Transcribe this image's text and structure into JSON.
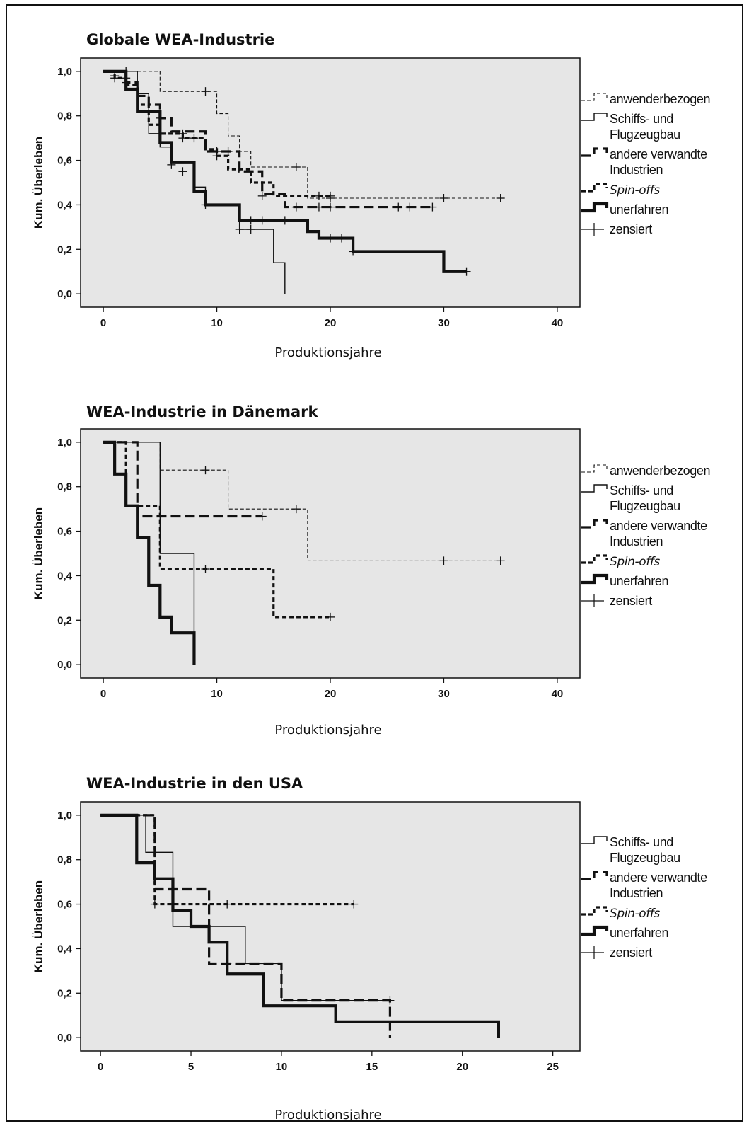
{
  "styles": {
    "anwenderbezogen": {
      "width": 1.1,
      "dash": "5 3"
    },
    "schiffsbau": {
      "width": 1.4,
      "dash": ""
    },
    "andere": {
      "width": 3.2,
      "dash": "14 6"
    },
    "spinoffs": {
      "width": 3.2,
      "dash": "6 4"
    },
    "unerfahren": {
      "width": 4.2,
      "dash": ""
    }
  },
  "chart_data": [
    {
      "type": "line",
      "title": "Globale WEA-Industrie",
      "xlabel": "Produktionsjahre",
      "ylabel": "Kum. Überleben",
      "xlim": [
        -2,
        42
      ],
      "ylim": [
        -0.06,
        1.06
      ],
      "xticks": [
        0,
        10,
        20,
        30,
        40
      ],
      "xtick_labels": [
        "0",
        "10",
        "20",
        "30",
        "40"
      ],
      "yticks": [
        0,
        0.2,
        0.4,
        0.6,
        0.8,
        1.0
      ],
      "ytick_labels": [
        "0,0",
        "0,2",
        "0,4",
        "0,6",
        "0,8",
        "1,0"
      ],
      "legend": [
        {
          "key": "anwenderbezogen",
          "lines": [
            "anwenderbezogen"
          ],
          "italic": false
        },
        {
          "key": "schiffsbau",
          "lines": [
            "Schiffs- und",
            "Flugzeugbau"
          ],
          "italic": false
        },
        {
          "key": "andere",
          "lines": [
            "andere verwandte",
            "Industrien"
          ],
          "italic": false
        },
        {
          "key": "spinoffs",
          "lines": [
            "Spin-offs"
          ],
          "italic": true
        },
        {
          "key": "unerfahren",
          "lines": [
            "unerfahren"
          ],
          "italic": false
        },
        {
          "key": "zensiert",
          "lines": [
            "zensiert"
          ],
          "italic": false
        }
      ],
      "series": [
        {
          "key": "anwenderbezogen",
          "steps": [
            [
              0,
              1.0
            ],
            [
              5,
              0.91
            ],
            [
              10,
              0.81
            ],
            [
              11,
              0.71
            ],
            [
              12,
              0.64
            ],
            [
              13,
              0.57
            ],
            [
              18,
              0.43
            ],
            [
              35,
              0.43
            ]
          ],
          "censored": [
            [
              2,
              1.0
            ],
            [
              9,
              0.91
            ],
            [
              17,
              0.57
            ],
            [
              20,
              0.43
            ],
            [
              30,
              0.43
            ],
            [
              35,
              0.43
            ]
          ]
        },
        {
          "key": "schiffsbau",
          "steps": [
            [
              0,
              1.0
            ],
            [
              3,
              0.9
            ],
            [
              4,
              0.72
            ],
            [
              5,
              0.66
            ],
            [
              6,
              0.59
            ],
            [
              8,
              0.48
            ],
            [
              9,
              0.4
            ],
            [
              10,
              0.4
            ],
            [
              12,
              0.29
            ],
            [
              15,
              0.14
            ],
            [
              16,
              0.0
            ]
          ],
          "censored": [
            [
              2,
              0.95
            ],
            [
              6,
              0.58
            ],
            [
              9,
              0.4
            ],
            [
              12,
              0.29
            ],
            [
              13,
              0.29
            ]
          ]
        },
        {
          "key": "andere",
          "steps": [
            [
              0,
              1.0
            ],
            [
              2,
              0.95
            ],
            [
              3,
              0.89
            ],
            [
              4,
              0.85
            ],
            [
              5,
              0.79
            ],
            [
              6,
              0.73
            ],
            [
              9,
              0.64
            ],
            [
              10,
              0.64
            ],
            [
              11,
              0.64
            ],
            [
              12,
              0.55
            ],
            [
              14,
              0.45
            ],
            [
              16,
              0.39
            ],
            [
              29,
              0.39
            ]
          ],
          "censored": [
            [
              2,
              0.97
            ],
            [
              5,
              0.79
            ],
            [
              7,
              0.72
            ],
            [
              10,
              0.64
            ],
            [
              11,
              0.64
            ],
            [
              17,
              0.39
            ],
            [
              19,
              0.39
            ],
            [
              20,
              0.39
            ],
            [
              26,
              0.39
            ],
            [
              27,
              0.39
            ],
            [
              29,
              0.39
            ]
          ]
        },
        {
          "key": "spinoffs",
          "steps": [
            [
              0,
              1.0
            ],
            [
              1,
              0.97
            ],
            [
              2,
              0.94
            ],
            [
              3,
              0.85
            ],
            [
              4,
              0.76
            ],
            [
              5,
              0.72
            ],
            [
              7,
              0.7
            ],
            [
              8,
              0.7
            ],
            [
              9,
              0.65
            ],
            [
              10,
              0.62
            ],
            [
              11,
              0.56
            ],
            [
              13,
              0.5
            ],
            [
              15,
              0.44
            ],
            [
              19,
              0.44
            ],
            [
              20,
              0.44
            ]
          ],
          "censored": [
            [
              1,
              0.97
            ],
            [
              7,
              0.7
            ],
            [
              8,
              0.7
            ],
            [
              10,
              0.62
            ],
            [
              14,
              0.44
            ],
            [
              19,
              0.44
            ],
            [
              20,
              0.44
            ]
          ]
        },
        {
          "key": "unerfahren",
          "steps": [
            [
              0,
              1.0
            ],
            [
              2,
              0.92
            ],
            [
              3,
              0.82
            ],
            [
              5,
              0.68
            ],
            [
              6,
              0.59
            ],
            [
              8,
              0.46
            ],
            [
              9,
              0.4
            ],
            [
              12,
              0.33
            ],
            [
              18,
              0.28
            ],
            [
              19,
              0.25
            ],
            [
              22,
              0.19
            ],
            [
              30,
              0.1
            ],
            [
              32,
              0.1
            ]
          ],
          "censored": [
            [
              1,
              0.98
            ],
            [
              4,
              0.82
            ],
            [
              7,
              0.55
            ],
            [
              13,
              0.33
            ],
            [
              14,
              0.33
            ],
            [
              16,
              0.33
            ],
            [
              20,
              0.25
            ],
            [
              21,
              0.25
            ],
            [
              22,
              0.19
            ],
            [
              32,
              0.1
            ]
          ]
        }
      ]
    },
    {
      "type": "line",
      "title": "WEA-Industrie in Dänemark",
      "xlabel": "Produktionsjahre",
      "ylabel": "Kum. Überleben",
      "xlim": [
        -2,
        42
      ],
      "ylim": [
        -0.06,
        1.06
      ],
      "xticks": [
        0,
        10,
        20,
        30,
        40
      ],
      "xtick_labels": [
        "0",
        "10",
        "20",
        "30",
        "40"
      ],
      "yticks": [
        0,
        0.2,
        0.4,
        0.6,
        0.8,
        1.0
      ],
      "ytick_labels": [
        "0,0",
        "0,2",
        "0,4",
        "0,6",
        "0,8",
        "1,0"
      ],
      "legend": [
        {
          "key": "anwenderbezogen",
          "lines": [
            "anwenderbezogen"
          ],
          "italic": false
        },
        {
          "key": "schiffsbau",
          "lines": [
            "Schiffs- und",
            "Flugzeugbau"
          ],
          "italic": false
        },
        {
          "key": "andere",
          "lines": [
            "andere verwandte",
            "Industrien"
          ],
          "italic": false
        },
        {
          "key": "spinoffs",
          "lines": [
            "Spin-offs"
          ],
          "italic": true
        },
        {
          "key": "unerfahren",
          "lines": [
            "unerfahren"
          ],
          "italic": false
        },
        {
          "key": "zensiert",
          "lines": [
            "zensiert"
          ],
          "italic": false
        }
      ],
      "series": [
        {
          "key": "anwenderbezogen",
          "steps": [
            [
              0,
              1.0
            ],
            [
              5,
              0.875
            ],
            [
              11,
              0.7
            ],
            [
              18,
              0.467
            ],
            [
              35,
              0.467
            ]
          ],
          "censored": [
            [
              9,
              0.875
            ],
            [
              17,
              0.7
            ],
            [
              30,
              0.467
            ],
            [
              35,
              0.467
            ]
          ]
        },
        {
          "key": "schiffsbau",
          "steps": [
            [
              0,
              1.0
            ],
            [
              5,
              0.5
            ],
            [
              8,
              0.5
            ],
            [
              8,
              0.0
            ]
          ],
          "censored": []
        },
        {
          "key": "andere",
          "steps": [
            [
              0,
              1.0
            ],
            [
              3,
              0.667
            ],
            [
              14,
              0.667
            ]
          ],
          "censored": [
            [
              14,
              0.667
            ]
          ]
        },
        {
          "key": "spinoffs",
          "steps": [
            [
              0,
              1.0
            ],
            [
              2,
              0.714
            ],
            [
              5,
              0.43
            ],
            [
              15,
              0.214
            ],
            [
              20,
              0.214
            ]
          ],
          "censored": [
            [
              9,
              0.43
            ],
            [
              20,
              0.214
            ]
          ]
        },
        {
          "key": "unerfahren",
          "steps": [
            [
              0,
              1.0
            ],
            [
              1,
              0.857
            ],
            [
              2,
              0.714
            ],
            [
              3,
              0.571
            ],
            [
              4,
              0.357
            ],
            [
              5,
              0.214
            ],
            [
              6,
              0.143
            ],
            [
              8,
              0.0
            ]
          ],
          "censored": []
        }
      ]
    },
    {
      "type": "line",
      "title": "WEA-Industrie in den USA",
      "xlabel": "Produktionsjahre",
      "ylabel": "Kum. Überleben",
      "xlim": [
        -1.1,
        26.5
      ],
      "ylim": [
        -0.06,
        1.06
      ],
      "xticks": [
        0,
        5,
        10,
        15,
        20,
        25
      ],
      "xtick_labels": [
        "0",
        "5",
        "10",
        "15",
        "20",
        "25"
      ],
      "yticks": [
        0,
        0.2,
        0.4,
        0.6,
        0.8,
        1.0
      ],
      "ytick_labels": [
        "0,0",
        "0,2",
        "0,4",
        "0,6",
        "0,8",
        "1,0"
      ],
      "legend": [
        {
          "key": "schiffsbau",
          "lines": [
            "Schiffs- und",
            "Flugzeugbau"
          ],
          "italic": false
        },
        {
          "key": "andere",
          "lines": [
            "andere verwandte",
            "Industrien"
          ],
          "italic": false
        },
        {
          "key": "spinoffs",
          "lines": [
            "Spin-offs"
          ],
          "italic": true
        },
        {
          "key": "unerfahren",
          "lines": [
            "unerfahren"
          ],
          "italic": false
        },
        {
          "key": "zensiert",
          "lines": [
            "zensiert"
          ],
          "italic": false
        }
      ],
      "series": [
        {
          "key": "schiffsbau",
          "steps": [
            [
              0,
              1.0
            ],
            [
              2.5,
              0.833
            ],
            [
              4,
              0.5
            ],
            [
              8,
              0.333
            ],
            [
              10,
              0.167
            ],
            [
              16,
              0.167
            ]
          ],
          "censored": []
        },
        {
          "key": "andere",
          "steps": [
            [
              0,
              1.0
            ],
            [
              3,
              0.667
            ],
            [
              6,
              0.333
            ],
            [
              10,
              0.167
            ],
            [
              16,
              0.0
            ]
          ],
          "censored": [
            [
              4,
              0.667
            ],
            [
              7,
              0.333
            ],
            [
              16,
              0.167
            ]
          ]
        },
        {
          "key": "spinoffs",
          "steps": [
            [
              0,
              1.0
            ],
            [
              3,
              0.6
            ],
            [
              14,
              0.6
            ]
          ],
          "censored": [
            [
              3,
              0.6
            ],
            [
              7,
              0.6
            ],
            [
              14,
              0.6
            ]
          ]
        },
        {
          "key": "unerfahren",
          "steps": [
            [
              0,
              1.0
            ],
            [
              2,
              0.786
            ],
            [
              3,
              0.714
            ],
            [
              4,
              0.571
            ],
            [
              5,
              0.5
            ],
            [
              6,
              0.429
            ],
            [
              7,
              0.286
            ],
            [
              9,
              0.143
            ],
            [
              13,
              0.071
            ],
            [
              22,
              0.0
            ]
          ],
          "censored": []
        }
      ]
    }
  ]
}
